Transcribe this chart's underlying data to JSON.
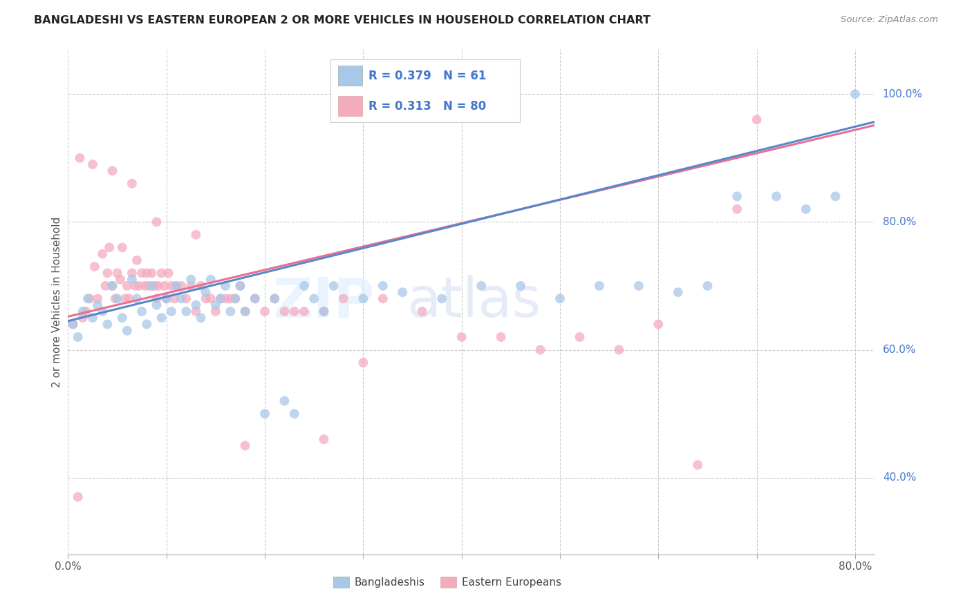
{
  "title": "BANGLADESHI VS EASTERN EUROPEAN 2 OR MORE VEHICLES IN HOUSEHOLD CORRELATION CHART",
  "source": "Source: ZipAtlas.com",
  "ylabel": "2 or more Vehicles in Household",
  "blue_color": "#A8C8E8",
  "pink_color": "#F4ABBE",
  "blue_line_color": "#5588CC",
  "pink_line_color": "#E87090",
  "legend_text_color": "#4477CC",
  "R_blue": 0.379,
  "N_blue": 61,
  "R_pink": 0.313,
  "N_pink": 80,
  "xlim": [
    0.0,
    0.82
  ],
  "ylim": [
    0.28,
    1.07
  ],
  "xticks": [
    0.0,
    0.1,
    0.2,
    0.3,
    0.4,
    0.5,
    0.6,
    0.7,
    0.8
  ],
  "yticks": [
    0.4,
    0.6,
    0.8,
    1.0
  ],
  "blue_scatter_x": [
    0.005,
    0.01,
    0.015,
    0.02,
    0.025,
    0.03,
    0.035,
    0.04,
    0.045,
    0.05,
    0.055,
    0.06,
    0.065,
    0.07,
    0.075,
    0.08,
    0.085,
    0.09,
    0.095,
    0.1,
    0.105,
    0.11,
    0.115,
    0.12,
    0.125,
    0.13,
    0.135,
    0.14,
    0.145,
    0.15,
    0.155,
    0.16,
    0.165,
    0.17,
    0.175,
    0.18,
    0.19,
    0.2,
    0.21,
    0.22,
    0.23,
    0.24,
    0.25,
    0.26,
    0.27,
    0.3,
    0.32,
    0.34,
    0.38,
    0.42,
    0.46,
    0.5,
    0.54,
    0.58,
    0.62,
    0.65,
    0.68,
    0.72,
    0.75,
    0.78,
    0.8
  ],
  "blue_scatter_y": [
    0.64,
    0.62,
    0.66,
    0.68,
    0.65,
    0.67,
    0.66,
    0.64,
    0.7,
    0.68,
    0.65,
    0.63,
    0.71,
    0.68,
    0.66,
    0.64,
    0.7,
    0.67,
    0.65,
    0.68,
    0.66,
    0.7,
    0.68,
    0.66,
    0.71,
    0.67,
    0.65,
    0.69,
    0.71,
    0.67,
    0.68,
    0.7,
    0.66,
    0.68,
    0.7,
    0.66,
    0.68,
    0.5,
    0.68,
    0.52,
    0.5,
    0.7,
    0.68,
    0.66,
    0.7,
    0.68,
    0.7,
    0.69,
    0.68,
    0.7,
    0.7,
    0.68,
    0.7,
    0.7,
    0.69,
    0.7,
    0.84,
    0.84,
    0.82,
    0.84,
    1.0
  ],
  "pink_scatter_x": [
    0.005,
    0.01,
    0.015,
    0.018,
    0.022,
    0.027,
    0.03,
    0.035,
    0.038,
    0.04,
    0.042,
    0.045,
    0.048,
    0.05,
    0.053,
    0.055,
    0.058,
    0.06,
    0.062,
    0.065,
    0.068,
    0.07,
    0.072,
    0.075,
    0.078,
    0.08,
    0.082,
    0.085,
    0.088,
    0.09,
    0.092,
    0.095,
    0.098,
    0.1,
    0.102,
    0.105,
    0.108,
    0.11,
    0.115,
    0.12,
    0.125,
    0.13,
    0.135,
    0.14,
    0.145,
    0.15,
    0.155,
    0.16,
    0.165,
    0.17,
    0.175,
    0.18,
    0.19,
    0.2,
    0.21,
    0.22,
    0.23,
    0.24,
    0.26,
    0.28,
    0.3,
    0.32,
    0.36,
    0.4,
    0.44,
    0.48,
    0.52,
    0.56,
    0.6,
    0.64,
    0.68,
    0.7,
    0.012,
    0.025,
    0.045,
    0.065,
    0.09,
    0.13,
    0.18,
    0.26
  ],
  "pink_scatter_y": [
    0.64,
    0.37,
    0.65,
    0.66,
    0.68,
    0.73,
    0.68,
    0.75,
    0.7,
    0.72,
    0.76,
    0.7,
    0.68,
    0.72,
    0.71,
    0.76,
    0.68,
    0.7,
    0.68,
    0.72,
    0.7,
    0.74,
    0.7,
    0.72,
    0.7,
    0.72,
    0.7,
    0.72,
    0.7,
    0.68,
    0.7,
    0.72,
    0.7,
    0.68,
    0.72,
    0.7,
    0.68,
    0.7,
    0.7,
    0.68,
    0.7,
    0.66,
    0.7,
    0.68,
    0.68,
    0.66,
    0.68,
    0.68,
    0.68,
    0.68,
    0.7,
    0.66,
    0.68,
    0.66,
    0.68,
    0.66,
    0.66,
    0.66,
    0.66,
    0.68,
    0.58,
    0.68,
    0.66,
    0.62,
    0.62,
    0.6,
    0.62,
    0.6,
    0.64,
    0.42,
    0.82,
    0.96,
    0.9,
    0.89,
    0.88,
    0.86,
    0.8,
    0.78,
    0.45,
    0.46
  ]
}
